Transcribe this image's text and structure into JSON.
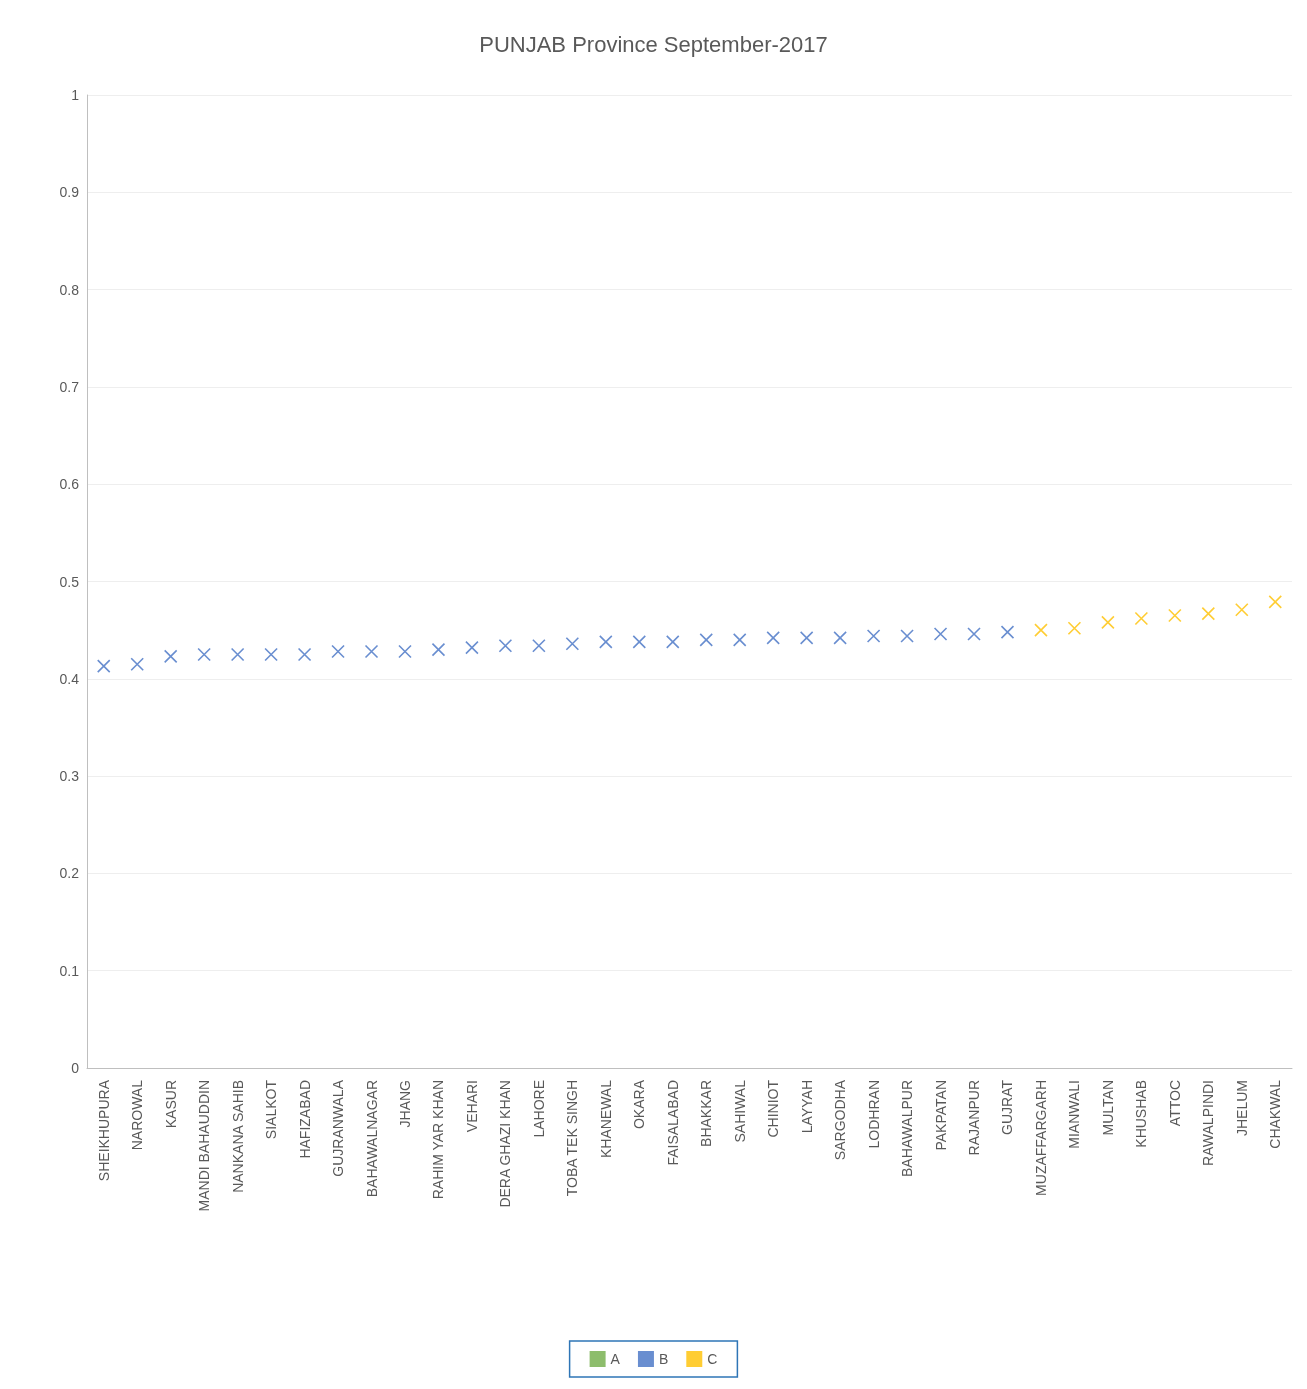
{
  "chart_data": {
    "type": "scatter",
    "title": "PUNJAB Province September-2017",
    "categories": [
      "SHEIKHUPURA",
      "NAROWAL",
      "KASUR",
      "MANDI BAHAUDDIN",
      "NANKANA SAHIB",
      "SIALKOT",
      "HAFIZABAD",
      "GUJRANWALA",
      "BAHAWALNAGAR",
      "JHANG",
      "RAHIM YAR KHAN",
      "VEHARI",
      "DERA GHAZI KHAN",
      "LAHORE",
      "TOBA TEK SINGH",
      "KHANEWAL",
      "OKARA",
      "FAISALABAD",
      "BHAKKAR",
      "SAHIWAL",
      "CHINIOT",
      "LAYYAH",
      "SARGODHA",
      "LODHRAN",
      "BAHAWALPUR",
      "PAKPATAN",
      "RAJANPUR",
      "GUJRAT",
      "MUZAFFARGARH",
      "MIANWALI",
      "MULTAN",
      "KHUSHAB",
      "ATTOC",
      "RAWALPINDI",
      "JHELUM",
      "CHAKWAL"
    ],
    "series": [
      {
        "name": "A",
        "color": "#70ad47",
        "values": [
          null,
          null,
          null,
          null,
          null,
          null,
          null,
          null,
          null,
          null,
          null,
          null,
          null,
          null,
          null,
          null,
          null,
          null,
          null,
          null,
          null,
          null,
          null,
          null,
          null,
          null,
          null,
          null,
          null,
          null,
          null,
          null,
          null,
          null,
          null,
          null
        ]
      },
      {
        "name": "B",
        "color": "#4472c4",
        "values": [
          0.413,
          0.415,
          0.423,
          0.425,
          0.425,
          0.425,
          0.425,
          0.428,
          0.428,
          0.428,
          0.43,
          0.432,
          0.434,
          0.434,
          0.436,
          0.438,
          0.438,
          0.438,
          0.44,
          0.44,
          0.442,
          0.442,
          0.442,
          0.444,
          0.444,
          0.446,
          0.446,
          0.448,
          null,
          null,
          null,
          null,
          null,
          null,
          null,
          null
        ]
      },
      {
        "name": "C",
        "color": "#ffc000",
        "values": [
          null,
          null,
          null,
          null,
          null,
          null,
          null,
          null,
          null,
          null,
          null,
          null,
          null,
          null,
          null,
          null,
          null,
          null,
          null,
          null,
          null,
          null,
          null,
          null,
          null,
          null,
          null,
          null,
          0.45,
          0.452,
          0.458,
          0.462,
          0.465,
          0.467,
          0.471,
          0.479
        ]
      }
    ],
    "ylim": [
      0,
      1
    ],
    "yticks": [
      0,
      0.1,
      0.2,
      0.3,
      0.4,
      0.5,
      0.6,
      0.7,
      0.8,
      0.9,
      1
    ],
    "grid": "y",
    "legend": "bottom",
    "marker": "cross"
  }
}
